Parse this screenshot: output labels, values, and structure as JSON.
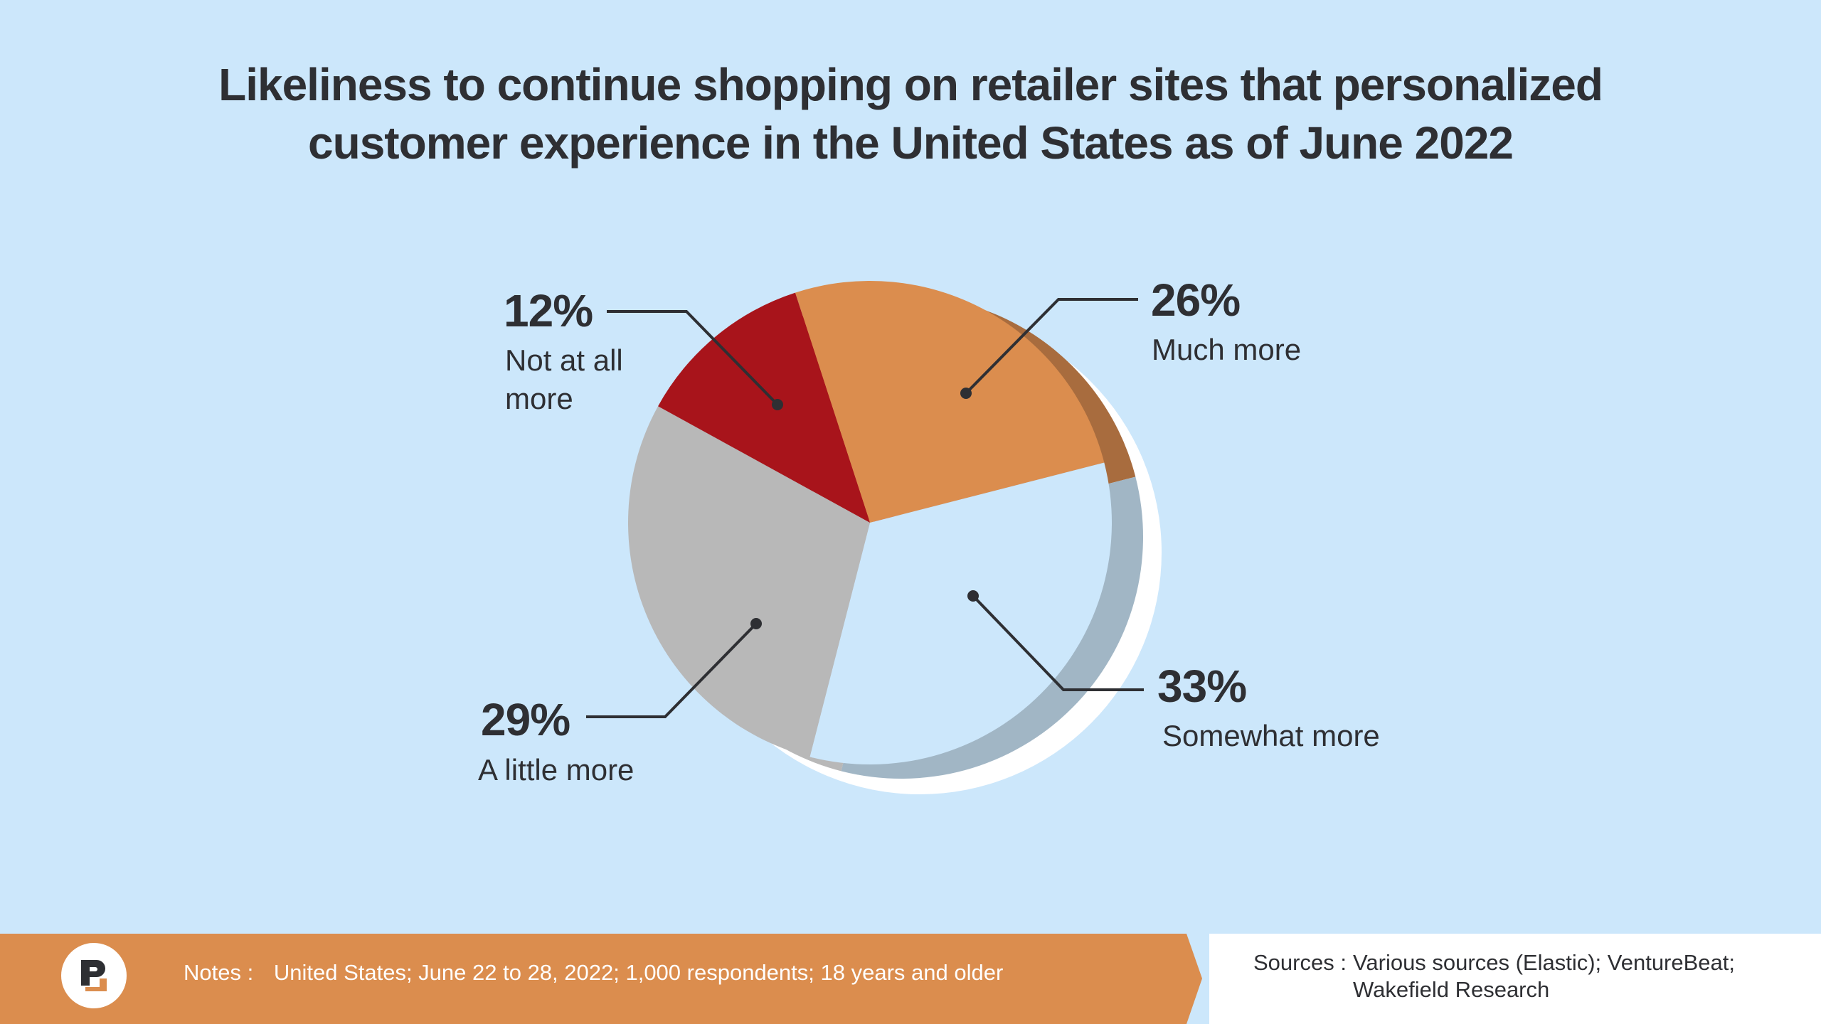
{
  "title": {
    "line1": "Likeliness to continue shopping on retailer sites that personalized",
    "line2": "customer experience in the United States as of June 2022"
  },
  "chart_data": {
    "type": "pie",
    "title": "Likeliness to continue shopping on retailer sites that personalized customer experience in the United States as of June 2022",
    "unit": "%",
    "slices": [
      {
        "label": "Much more",
        "value": 26,
        "display": "26%",
        "color": "#db8d4e",
        "shade": "#a86c3e"
      },
      {
        "label": "Somewhat more",
        "value": 33,
        "display": "33%",
        "color": "#cce7fb",
        "shade": "#a1b6c5"
      },
      {
        "label": "A little more",
        "value": 29,
        "display": "29%",
        "color": "#b8b8b8",
        "shade": "#b8b8b8"
      },
      {
        "label": "Not at all more",
        "value": 12,
        "display": "12%",
        "color": "#a8141b",
        "shade": "#a8141b"
      }
    ]
  },
  "labels": {
    "not_at_all": {
      "pct": "12%",
      "line1": "Not at all",
      "line2": "more"
    },
    "much_more": {
      "pct": "26%",
      "line1": "Much more"
    },
    "somewhat_more": {
      "pct": "33%",
      "line1": "Somewhat more"
    },
    "a_little_more": {
      "pct": "29%",
      "line1": "A little more"
    }
  },
  "footer": {
    "notes_key": "Notes :",
    "notes_value": "United States; June 22 to 28, 2022; 1,000 respondents; 18 years and older",
    "sources_key": "Sources :",
    "sources_value_line1": "Various sources (Elastic); VentureBeat;",
    "sources_value_line2": "Wakefield Research"
  },
  "colors": {
    "background": "#cce7fb",
    "footer_orange": "#db8d4e",
    "text_dark": "#2e2f33"
  }
}
